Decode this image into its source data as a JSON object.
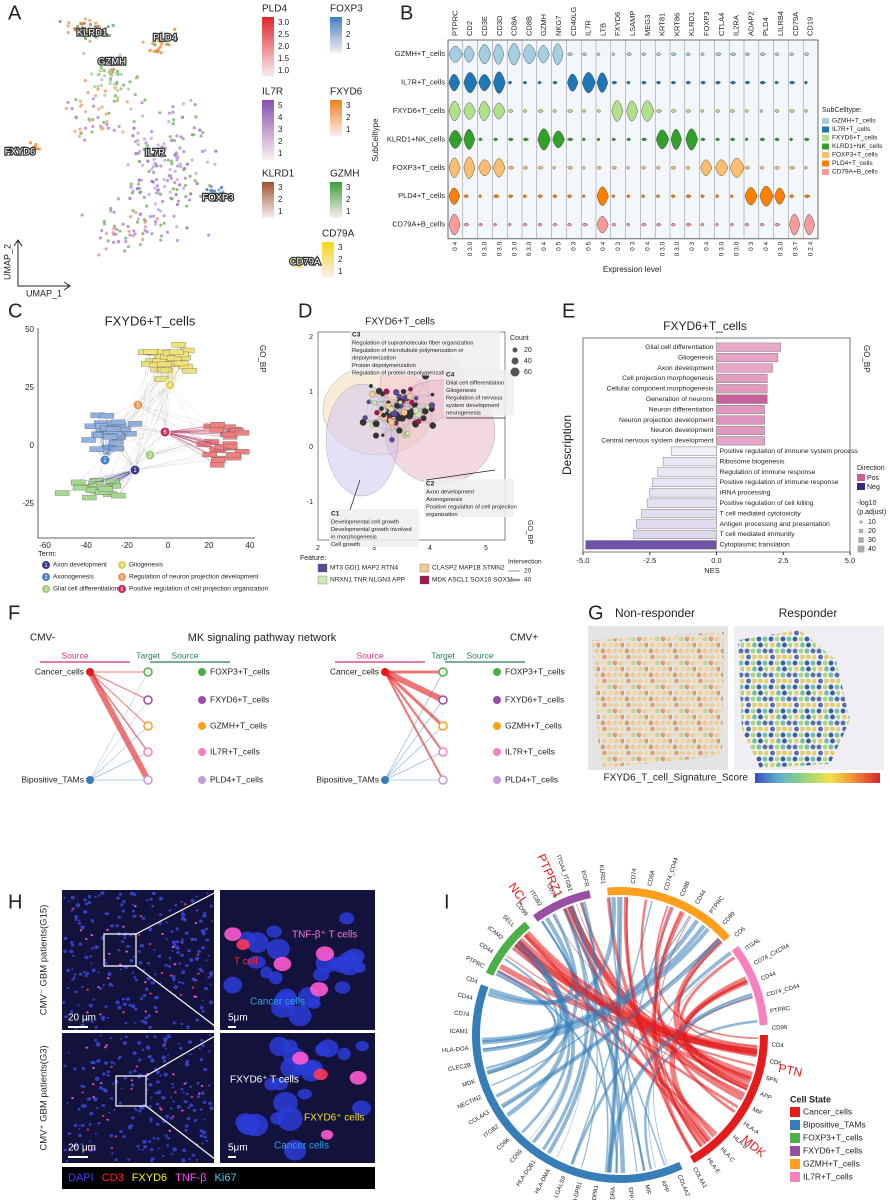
{
  "panel_labels": {
    "a": "A",
    "b": "B",
    "c": "C",
    "d": "D",
    "e": "E",
    "f": "F",
    "g": "G",
    "h": "H",
    "i": "I"
  },
  "umap": {
    "x_axis": "UMAP_1",
    "y_axis": "UMAP_2",
    "clusters": [
      "KLRD1",
      "PLD4",
      "GZMH",
      "FXYD6",
      "IL7R",
      "FOXP3",
      "CD79A"
    ],
    "colorbars": [
      {
        "gene": "PLD4",
        "color": "#e0262b",
        "ticks": [
          "3.0",
          "2.5",
          "2.0",
          "1.5",
          "1.0"
        ]
      },
      {
        "gene": "FOXP3",
        "color": "#3f7fc0",
        "ticks": [
          "3",
          "2",
          "1"
        ]
      },
      {
        "gene": "IL7R",
        "color": "#8a4fb0",
        "ticks": [
          "5",
          "4",
          "3",
          "2",
          "1"
        ]
      },
      {
        "gene": "FXYD6",
        "color": "#f0801c",
        "ticks": [
          "3",
          "2",
          "1"
        ]
      },
      {
        "gene": "KLRD1",
        "color": "#a0522d",
        "ticks": [
          "3",
          "2",
          "1"
        ]
      },
      {
        "gene": "GZMH",
        "color": "#3aa03a",
        "ticks": [
          "3",
          "2",
          "1"
        ]
      },
      {
        "gene": "CD79A",
        "color": "#f2d81c",
        "ticks": [
          "3",
          "2",
          "1"
        ]
      }
    ]
  },
  "violin": {
    "y_axis": "SubCelltype",
    "x_axis": "Expression level",
    "legend_title": "SubCelltype:",
    "genes": [
      "PTPRC",
      "CD2",
      "CD3E",
      "CD3D",
      "CD8A",
      "CD8B",
      "GZMH",
      "NKG7",
      "CD40LG",
      "IL7R",
      "LTB",
      "FXYD6",
      "LSAMP",
      "MEG3",
      "KRT81",
      "KRT86",
      "KLRD1",
      "FOXP3",
      "CTLA4",
      "IL2RA",
      "ADAP2",
      "PLD4",
      "LILRB4",
      "CD79A",
      "CD19"
    ],
    "scale_labels": [
      "0 4",
      "0 3.0",
      "0 3.0",
      "0 3.0",
      "0 3.0",
      "0 3.0",
      "0 4",
      "0 5",
      "0 3",
      "0 5",
      "0 4",
      "0 3",
      "0 3",
      "0 4",
      "0 3.0",
      "0 3.0",
      "0 3",
      "0 4",
      "0 3.0",
      "0 3.0",
      "0 3",
      "0 4",
      "0 3.0",
      "0 3.7",
      "0 2.4"
    ],
    "subtypes": [
      {
        "name": "GZMH+T_cells",
        "color": "#a6cee3"
      },
      {
        "name": "IL7R+T_cells",
        "color": "#1f78b4"
      },
      {
        "name": "FXYD6+T_cells",
        "color": "#b2df8a"
      },
      {
        "name": "KLRD1+NK_cells",
        "color": "#33a02c"
      },
      {
        "name": "FOXP3+T_cells",
        "color": "#fdbf6f"
      },
      {
        "name": "PLD4+T_cells",
        "color": "#ff7f00"
      },
      {
        "name": "CD79A+B_cells",
        "color": "#fb9a99"
      }
    ]
  },
  "network_c": {
    "title": "FXYD6+T_cells",
    "side_label": "GO_BP",
    "yticks": [
      "50",
      "25",
      "0",
      "-25"
    ],
    "xticks": [
      "-60",
      "-40",
      "-20",
      "0",
      "20",
      "40"
    ],
    "legend_title": "Term:",
    "terms": [
      {
        "id": "1",
        "name": "Axon development",
        "color": "#3b3b8f"
      },
      {
        "id": "2",
        "name": "Axonogenesis",
        "color": "#4a80c0"
      },
      {
        "id": "3",
        "name": "Glial cell differentiation",
        "color": "#9fcf7a"
      },
      {
        "id": "4",
        "name": "Gliogenesis",
        "color": "#e0d35a"
      },
      {
        "id": "5",
        "name": "Regulation of neuron projection development",
        "color": "#e8975a"
      },
      {
        "id": "6",
        "name": "Positive regulation of cell projection organization",
        "color": "#c02d5a"
      }
    ]
  },
  "network_d": {
    "title": "FXYD6+T_cells",
    "side_label": "GO_BP",
    "yticks": [
      "2",
      "1",
      "0",
      "-1"
    ],
    "xticks": [
      "2",
      "3",
      "4",
      "5"
    ],
    "clusters": [
      {
        "id": "C3",
        "lines": [
          "Regulation of supramolecular fiber organization",
          "Regulation of microtubule polymerization or",
          "depolymerization",
          "Protein depolymerization",
          "Regulation of protein depolymerization"
        ]
      },
      {
        "id": "C4",
        "lines": [
          "Glial cell differentiation",
          "Gliogenesis",
          "Regulation of nervous",
          "system development",
          "neurogenesis"
        ]
      },
      {
        "id": "C2",
        "lines": [
          "Axon development",
          "Axonogenesis",
          "Positive regulation of cell projection",
          "organization"
        ]
      },
      {
        "id": "C1",
        "lines": [
          "Developmental cell growth",
          "Developmental growth involved",
          "in morphogenesis",
          "Cell growth"
        ]
      }
    ],
    "count_title": "Count",
    "counts": [
      "20",
      "40",
      "60"
    ],
    "feature_title": "Feature:",
    "features": [
      {
        "genes": "MT3 GDI1 MAP2 RTN4",
        "color": "#5b4a9c"
      },
      {
        "genes": "CLASP2 MAP1B STMN2",
        "color": "#f5c890"
      },
      {
        "genes": "NRXN1 TNR NLGN3 APP",
        "color": "#cde8b4"
      },
      {
        "genes": "MDK ASCL1 SOX10 SOX11",
        "color": "#9c1b4c"
      }
    ],
    "intersection_title": "Intersection",
    "intersections": [
      "20",
      "40"
    ]
  },
  "gsea": {
    "title": "FXYD6+T_cells",
    "side_label": "GO_BP",
    "y_axis": "Description",
    "x_axis": "NES",
    "xlim": [
      -5,
      5
    ],
    "xticks": [
      {
        "value": -5,
        "label": "-5.0"
      },
      {
        "value": -2.5,
        "label": "-2.5"
      },
      {
        "value": 0,
        "label": "0.0"
      },
      {
        "value": 2.5,
        "label": "2.5"
      },
      {
        "value": 5,
        "label": "5.0"
      }
    ],
    "terms": [
      "Glial cell differentiation",
      "Gliogenesis",
      "Axon development",
      "Cell projection morphogenesis",
      "Cellular component morphogenesis",
      "Generation of neurons",
      "Neuron differentiation",
      "Neuron projection development",
      "Neuron development",
      "Central nervous system development",
      "Positive regulation of immune system process",
      "Ribosome biogenesis",
      "Regulation of immune response",
      "Positive regulation of immune response",
      "rRNA processing",
      "Positive regulation of cell killing",
      "T cell mediated cytotoxicity",
      "Antigen processing and presentation",
      "T cell mediated immunity",
      "Cytoplasmic translation"
    ],
    "nes": [
      2.4,
      2.3,
      2.1,
      1.9,
      1.9,
      1.9,
      1.8,
      1.8,
      1.8,
      1.8,
      -1.7,
      -2.0,
      -2.2,
      -2.4,
      -2.5,
      -2.6,
      -2.8,
      -3.0,
      -3.1,
      -4.9
    ],
    "colors": [
      "#e8a9c9",
      "#e6a3c5",
      "#e7a6c7",
      "#e39dc1",
      "#e29bc0",
      "#c9609b",
      "#e098be",
      "#de95bb",
      "#e29bc0",
      "#e6a5c6",
      "#f1eef6",
      "#ece8f3",
      "#ebe6f3",
      "#e9e4f2",
      "#e8e3f1",
      "#e6e0f0",
      "#e3dcee",
      "#e1daed",
      "#dfd7ec",
      "#7052a8"
    ],
    "direction_title": "Direction",
    "directions": [
      {
        "name": "Pos",
        "color": "#c9609b"
      },
      {
        "name": "Neg",
        "color": "#3b2a7a"
      }
    ],
    "size_title": [
      "-log10",
      "(p.adjust)"
    ],
    "sizes": [
      "10",
      "20",
      "30",
      "40"
    ]
  },
  "mk_network": {
    "title": "MK signaling pathway network",
    "left": "CMV-",
    "right": "CMV+",
    "source": "Source",
    "target": "Target",
    "sources": [
      {
        "name": "Cancer_cells",
        "color": "#e41a1c"
      },
      {
        "name": "Bipositive_TAMs",
        "color": "#377eb8"
      }
    ],
    "targets": [
      {
        "name": "FOXP3+T_cells",
        "color": "#4daf4a"
      },
      {
        "name": "FXYD6+T_cells",
        "color": "#984ea3"
      },
      {
        "name": "GZMH+T_cells",
        "color": "#ff9f1c"
      },
      {
        "name": "IL7R+T_cells",
        "color": "#f781bf"
      },
      {
        "name": "PLD4+T_cells",
        "color": "#c59bd8"
      }
    ]
  },
  "spatial": {
    "left": "Non-responder",
    "right": "Responder",
    "colorbar": "FXYD6_T_cell_Signature_Score"
  },
  "imaging": {
    "top_label": "CMV⁻ GBM patients(G15)",
    "bottom_label": "CMV⁺ GBM patients(G3)",
    "scale_large": "20 μm",
    "scale_small": "5μm",
    "top_annotations": [
      {
        "text": "TNF-β⁺ T cells",
        "color": "#ff7ad9"
      },
      {
        "text": "T cell",
        "color": "#ff2828"
      },
      {
        "text": "Cancer cells",
        "color": "#2fa4e4"
      }
    ],
    "bottom_annotations": [
      {
        "text": "FXYD6⁺ T cells",
        "color": "#ffffff"
      },
      {
        "text": "FXYD6⁺ cells",
        "color": "#f0e020"
      },
      {
        "text": "Cancer cells",
        "color": "#2fa4e4"
      }
    ],
    "channels": [
      {
        "name": "DAPI",
        "color": "#4040ff"
      },
      {
        "name": "CD3",
        "color": "#ff2424"
      },
      {
        "name": "FXYD6",
        "color": "#f4f020"
      },
      {
        "name": "TNF-β",
        "color": "#ff44ff"
      },
      {
        "name": "Ki67",
        "color": "#44ccff"
      }
    ]
  },
  "chord": {
    "legend_title": "Cell State",
    "states": [
      {
        "name": "Cancer_cells",
        "color": "#e41a1c"
      },
      {
        "name": "Bipositive_TAMs",
        "color": "#377eb8"
      },
      {
        "name": "FOXP3+T_cells",
        "color": "#4daf4a"
      },
      {
        "name": "FXYD6+T_cells",
        "color": "#984ea3"
      },
      {
        "name": "GZMH+T_cells",
        "color": "#ff9f1c"
      },
      {
        "name": "IL7R+T_cells",
        "color": "#f781bf"
      }
    ],
    "major_labels": [
      "NCL",
      "PTPRZ1",
      "PTN",
      "MDK"
    ],
    "labels": [
      "CD74",
      "CD8A",
      "CD74_CD44",
      "CD8B",
      "CD44",
      "PTPRC",
      "CD99",
      "CD6",
      "ITGAL",
      "CD74_CXCR4",
      "CD44",
      "CD74_CD44",
      "PTPRC",
      "CD99",
      "CD4",
      "CD6",
      "SPN",
      "APP",
      "MIF",
      "HLA-A",
      "HLA-B",
      "HLA-C",
      "HLA-E",
      "COL4A1",
      "COL4A2",
      "APP",
      "MIF",
      "SPP1",
      "HLA-DRA",
      "HLA-DPA1",
      "HLA-DPB1",
      "LGALS9",
      "HLA-DMA",
      "HLA-DQB1",
      "CD99",
      "CD86",
      "ITGB2",
      "COL4A3",
      "NECTIN2",
      "MDK",
      "CLEC2B",
      "HLA-DOA",
      "ICAM1",
      "CD74",
      "CD44",
      "CD4",
      "PTPRC",
      "CD44",
      "ICAM2",
      "SELL",
      "CD99",
      "ITGB2",
      "CD74",
      "ITGA4_ITGB1",
      "EGFR",
      "KLRD1"
    ]
  }
}
